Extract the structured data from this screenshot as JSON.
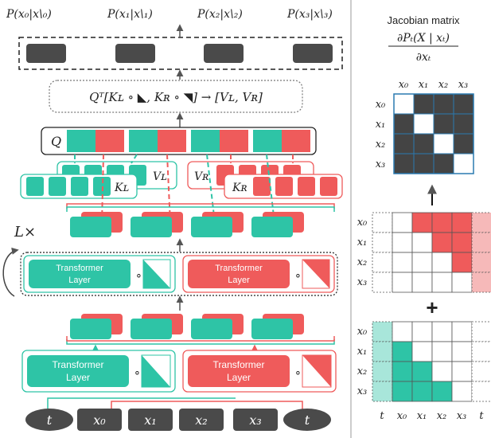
{
  "colors": {
    "teal": "#2ec4a6",
    "red": "#ef5b5b",
    "dark": "#4a4a4a",
    "light_red": "#f6b9b9",
    "light_teal": "#a8e6da"
  },
  "outputs": [
    "P(x₀|x\\₀)",
    "P(x₁|x\\₁)",
    "P(x₂|x\\₂)",
    "P(x₃|x\\₃)"
  ],
  "attention_formula": "Qᵀ[Kʟ ∘ ◣, Kʀ ∘ ◥] → [Vʟ, Vʀ]",
  "q_label": "Q",
  "vl_label": "Vʟ",
  "vr_label": "Vʀ",
  "kl_label": "Kʟ",
  "kr_label": "Kʀ",
  "repeat_label": "L×",
  "transformer_label_line1": "Transformer",
  "transformer_label_line2": "Layer",
  "hadamard": "∘",
  "inputs": [
    "t",
    "x₀",
    "x₁",
    "x₂",
    "x₃",
    "t"
  ],
  "jacobian": {
    "title": "Jacobian matrix",
    "numerator": "∂Pₜ(X | xₜ)",
    "denominator": "∂xₜ",
    "col_labels": [
      "x₀",
      "x₁",
      "x₂",
      "x₃"
    ],
    "row_labels": [
      "x₀",
      "x₁",
      "x₂",
      "x₃"
    ]
  },
  "mask_labels": {
    "rows": [
      "x₀",
      "x₁",
      "x₂",
      "x₃"
    ],
    "cols": [
      "t",
      "x₀",
      "x₁",
      "x₂",
      "x₃",
      "t"
    ]
  },
  "plus": "+"
}
